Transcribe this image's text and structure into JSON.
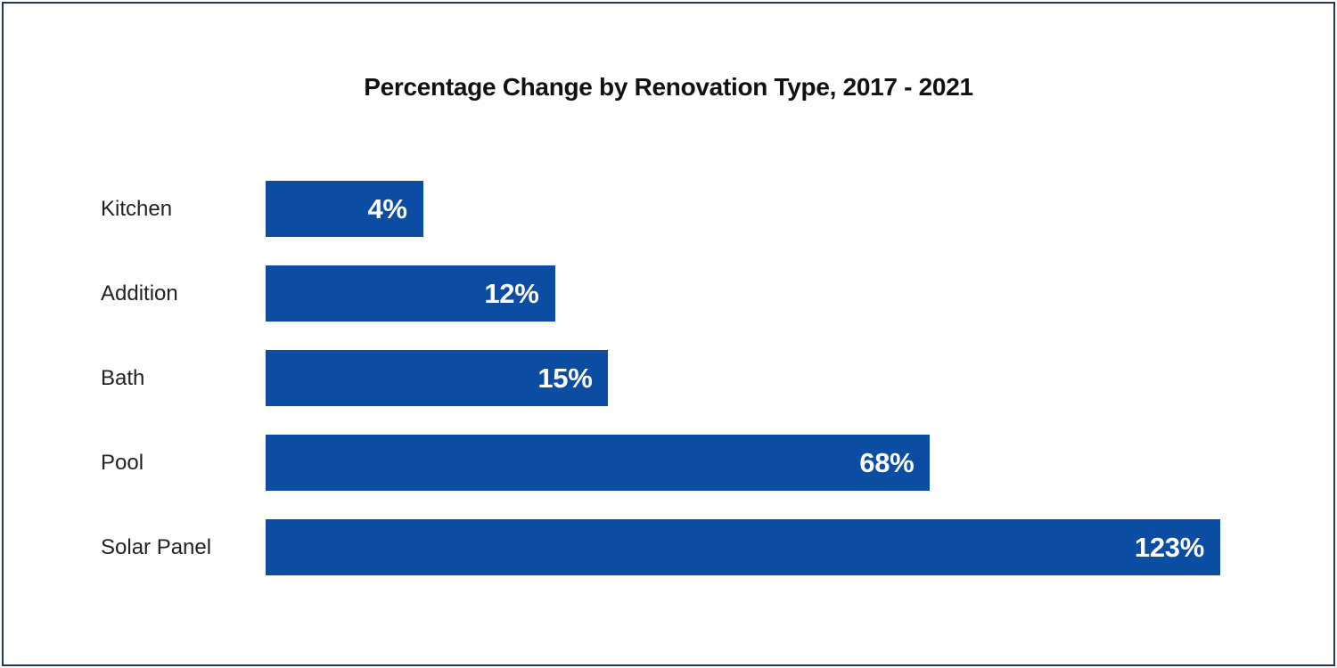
{
  "page": {
    "background": "#ffffff",
    "border_color": "#1f3a5c"
  },
  "chart_data": {
    "type": "bar",
    "orientation": "horizontal",
    "title": "Percentage Change by Renovation Type, 2017 - 2021",
    "title_color": "#111111",
    "categories": [
      "Kitchen",
      "Addition",
      "Bath",
      "Pool",
      "Solar Panel"
    ],
    "values": [
      4,
      12,
      15,
      68,
      123
    ],
    "value_labels": [
      "4%",
      "12%",
      "15%",
      "68%",
      "123%"
    ],
    "series": [
      {
        "name": "Percentage Change",
        "values": [
          4,
          12,
          15,
          68,
          123
        ]
      }
    ],
    "bar_color": "#0a4da3",
    "value_label_color": "#ffffff",
    "category_label_color": "#212121",
    "bar_relative_widths_pct": [
      16.5,
      30.3,
      35.9,
      69.6,
      100
    ],
    "xlabel": "",
    "ylabel": "",
    "axis_ticks": "none",
    "grid": false,
    "legend": "none",
    "value_label_position": "inside-end"
  }
}
